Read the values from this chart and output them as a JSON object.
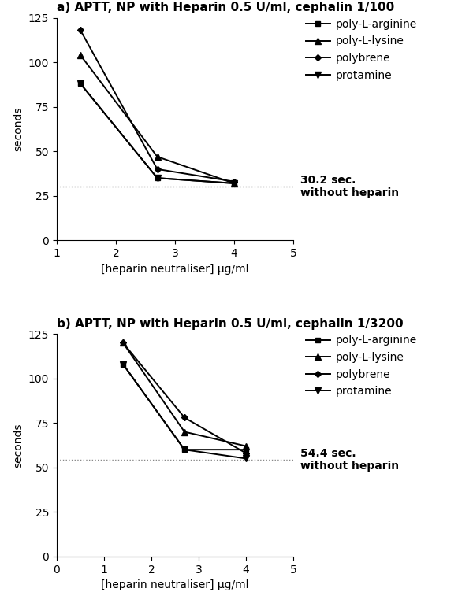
{
  "panel_a": {
    "title": "a) APTT, NP with Heparin 0.5 U/ml, cephalin 1/100",
    "series": [
      {
        "label": "poly-L-arginine",
        "x": [
          1.4,
          2.7,
          4.0
        ],
        "y": [
          88,
          35,
          32
        ]
      },
      {
        "label": "poly-L-lysine",
        "x": [
          1.4,
          2.7,
          4.0
        ],
        "y": [
          104,
          47,
          32
        ]
      },
      {
        "label": "polybrene",
        "x": [
          1.4,
          2.7,
          4.0
        ],
        "y": [
          118,
          40,
          33
        ]
      },
      {
        "label": "protamine",
        "x": [
          1.4,
          2.7,
          4.0
        ],
        "y": [
          88,
          35,
          32
        ]
      }
    ],
    "hline": 30.2,
    "hline_label_line1": "30.2 sec.",
    "hline_label_line2": "without heparin",
    "xlabel": "[heparin neutraliser] μg/ml",
    "ylabel": "seconds",
    "xlim": [
      1,
      5
    ],
    "ylim": [
      0,
      125
    ],
    "xticks": [
      1,
      2,
      3,
      4,
      5
    ],
    "yticks": [
      0,
      25,
      50,
      75,
      100,
      125
    ]
  },
  "panel_b": {
    "title": "b) APTT, NP with Heparin 0.5 U/ml, cephalin 1/3200",
    "series": [
      {
        "label": "poly-L-arginine",
        "x": [
          1.4,
          2.7,
          4.0
        ],
        "y": [
          108,
          60,
          60
        ]
      },
      {
        "label": "poly-L-lysine",
        "x": [
          1.4,
          2.7,
          4.0
        ],
        "y": [
          120,
          70,
          62
        ]
      },
      {
        "label": "polybrene",
        "x": [
          1.4,
          2.7,
          4.0
        ],
        "y": [
          120,
          78,
          58
        ]
      },
      {
        "label": "protamine",
        "x": [
          1.4,
          2.7,
          4.0
        ],
        "y": [
          108,
          60,
          55
        ]
      }
    ],
    "hline": 54.4,
    "hline_label_line1": "54.4 sec.",
    "hline_label_line2": "without heparin",
    "xlabel": "[heparin neutraliser] μg/ml",
    "ylabel": "seconds",
    "xlim": [
      0,
      5
    ],
    "ylim": [
      0,
      125
    ],
    "xticks": [
      0,
      1,
      2,
      3,
      4,
      5
    ],
    "yticks": [
      0,
      25,
      50,
      75,
      100,
      125
    ]
  },
  "series_props": [
    {
      "marker": "s",
      "markersize": 5,
      "lw": 1.4,
      "color": "#000000",
      "mfc": "#000000"
    },
    {
      "marker": "^",
      "markersize": 6,
      "lw": 1.4,
      "color": "#000000",
      "mfc": "#000000"
    },
    {
      "marker": "D",
      "markersize": 4,
      "lw": 1.4,
      "color": "#000000",
      "mfc": "#000000"
    },
    {
      "marker": "v",
      "markersize": 6,
      "lw": 1.4,
      "color": "#000000",
      "mfc": "#000000"
    }
  ],
  "legend_labels": [
    "poly-L-arginine",
    "poly-L-lysine",
    "polybrene",
    "protamine"
  ],
  "background_color": "#ffffff",
  "title_fontsize": 11,
  "axis_label_fontsize": 10,
  "tick_fontsize": 10,
  "legend_fontsize": 10,
  "annot_fontsize": 10
}
